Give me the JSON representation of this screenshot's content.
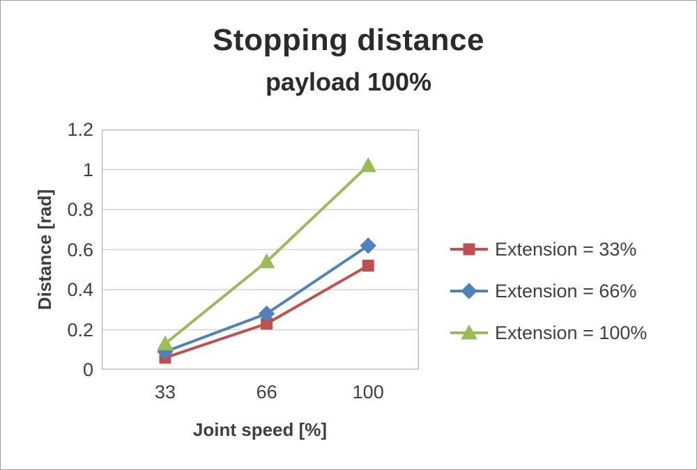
{
  "chart_data": {
    "type": "line",
    "title": "Stopping distance",
    "subtitle": "payload 100%",
    "xlabel": "Joint speed [%]",
    "ylabel": "Distance [rad]",
    "categories": [
      "33",
      "66",
      "100"
    ],
    "ylim": [
      0,
      1.2
    ],
    "y_ticks": [
      0,
      0.2,
      0.4,
      0.6,
      0.8,
      1,
      1.2
    ],
    "y_tick_labels": [
      "0",
      "0.2",
      "0.4",
      "0.6",
      "0.8",
      "1",
      "1.2"
    ],
    "grid": true,
    "legend_position": "right",
    "gridline_color": "#d3d3d3",
    "plot_border_color": "#bfbfbf",
    "series": [
      {
        "name": "Extension = 33%",
        "color": "#C0504D",
        "marker": "square",
        "values": [
          0.06,
          0.23,
          0.52
        ]
      },
      {
        "name": "Extension = 66%",
        "color": "#4F81BD",
        "marker": "diamond",
        "values": [
          0.09,
          0.28,
          0.62
        ]
      },
      {
        "name": "Extension = 100%",
        "color": "#9BBB59",
        "marker": "triangle",
        "values": [
          0.13,
          0.54,
          1.02
        ]
      }
    ]
  }
}
